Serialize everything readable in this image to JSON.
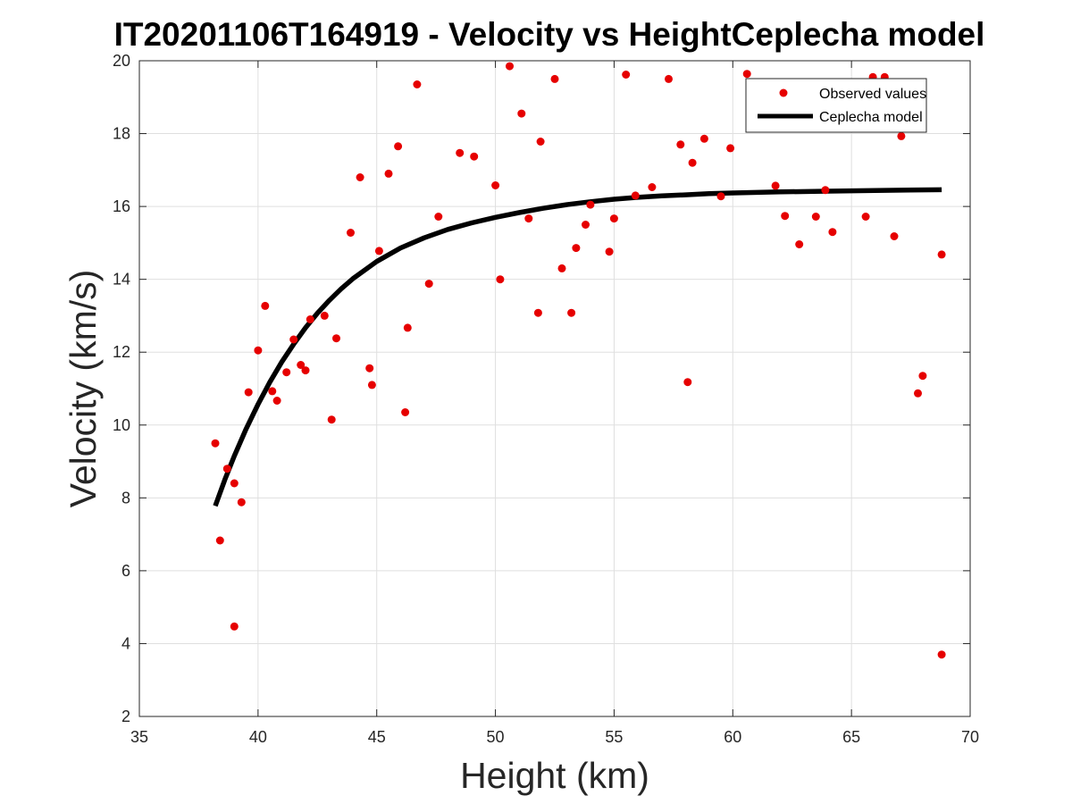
{
  "chart_data": {
    "type": "scatter",
    "title": "IT20201106T164919 - Velocity vs HeightCeplecha model",
    "xlabel": "Height (km)",
    "ylabel": "Velocity (km/s)",
    "xlim": [
      35,
      70
    ],
    "ylim": [
      2,
      20
    ],
    "xticks": [
      35,
      40,
      45,
      50,
      55,
      60,
      65,
      70
    ],
    "yticks": [
      2,
      4,
      6,
      8,
      10,
      12,
      14,
      16,
      18,
      20
    ],
    "grid": true,
    "legend_position": "top-right",
    "colors": {
      "observed": "#e60000",
      "model": "#000000",
      "grid": "#dfdfdf",
      "axes": "#262626"
    },
    "series": [
      {
        "name": "Observed values",
        "kind": "points",
        "x": [
          38.2,
          38.4,
          38.7,
          39.0,
          39.0,
          39.3,
          39.6,
          40.0,
          40.3,
          40.6,
          40.8,
          41.2,
          41.5,
          41.8,
          42.0,
          42.2,
          42.8,
          43.1,
          43.3,
          43.9,
          44.3,
          44.7,
          44.8,
          45.1,
          45.5,
          45.9,
          46.2,
          46.3,
          46.7,
          47.2,
          47.6,
          48.5,
          49.1,
          50.0,
          50.2,
          50.6,
          51.1,
          51.4,
          51.8,
          51.9,
          52.5,
          52.8,
          53.2,
          53.4,
          53.8,
          54.0,
          54.8,
          55.0,
          55.5,
          55.9,
          56.6,
          57.3,
          57.8,
          58.1,
          58.3,
          58.8,
          59.5,
          59.9,
          60.6,
          61.8,
          62.2,
          62.8,
          63.5,
          63.9,
          64.2,
          65.6,
          65.9,
          66.4,
          66.8,
          67.1,
          67.8,
          68.0,
          68.8,
          68.8
        ],
        "y": [
          9.5,
          6.83,
          8.8,
          8.4,
          4.47,
          7.88,
          10.9,
          12.05,
          13.27,
          10.93,
          10.67,
          11.45,
          12.35,
          11.65,
          11.5,
          12.9,
          13.0,
          10.15,
          12.38,
          15.28,
          16.8,
          11.56,
          11.1,
          14.78,
          16.9,
          17.65,
          10.35,
          12.67,
          19.35,
          13.88,
          15.72,
          17.47,
          17.37,
          16.58,
          14.0,
          19.85,
          18.55,
          15.67,
          13.08,
          17.78,
          19.5,
          14.3,
          13.08,
          14.86,
          15.5,
          16.05,
          14.76,
          15.67,
          19.62,
          16.3,
          16.53,
          19.5,
          17.7,
          11.18,
          17.2,
          17.86,
          16.28,
          17.6,
          19.64,
          16.57,
          15.74,
          14.96,
          15.72,
          16.45,
          15.3,
          15.72,
          19.55,
          19.55,
          15.18,
          17.93,
          10.87,
          11.35,
          14.68,
          3.7
        ]
      },
      {
        "name": "Ceplecha model",
        "kind": "curve",
        "x": [
          38.2,
          38.6,
          39.0,
          39.5,
          40.0,
          40.5,
          41.0,
          41.5,
          42.0,
          42.5,
          43.0,
          43.5,
          44.0,
          45.0,
          46.0,
          47.0,
          48.0,
          49.0,
          50.0,
          51.0,
          52.0,
          53.0,
          54.0,
          55.0,
          56.0,
          57.0,
          58.0,
          59.0,
          60.0,
          62.0,
          64.0,
          66.0,
          68.8
        ],
        "y": [
          7.78,
          8.5,
          9.15,
          9.9,
          10.57,
          11.18,
          11.73,
          12.22,
          12.67,
          13.07,
          13.42,
          13.74,
          14.02,
          14.49,
          14.86,
          15.14,
          15.37,
          15.55,
          15.7,
          15.83,
          15.95,
          16.05,
          16.13,
          16.2,
          16.25,
          16.29,
          16.32,
          16.35,
          16.37,
          16.4,
          16.42,
          16.44,
          16.46
        ]
      }
    ]
  }
}
